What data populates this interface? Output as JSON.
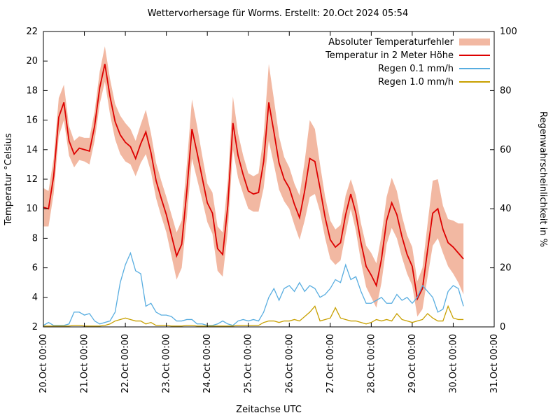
{
  "chart_data": {
    "type": "line",
    "title": "Wettervorhersage für Worms. Erstellt: 20.Oct 2024 05:54",
    "xlabel": "Zeitachse UTC",
    "ylabel_left": "Temperatur °Celsius",
    "ylabel_right": "Regenwahrscheinlichkeit in %",
    "background": "#ffffff",
    "axis_color": "#000000",
    "xlim_hours": [
      0,
      264
    ],
    "ylim_left": [
      2,
      22
    ],
    "ylim_right": [
      0,
      100
    ],
    "y_ticks_left": [
      2,
      4,
      6,
      8,
      10,
      12,
      14,
      16,
      18,
      20,
      22
    ],
    "y_ticks_right": [
      0,
      20,
      40,
      60,
      80,
      100
    ],
    "x_ticks": {
      "hours": [
        0,
        24,
        48,
        72,
        96,
        120,
        144,
        168,
        192,
        216,
        240,
        264
      ],
      "labels": [
        "20.Oct 00:00",
        "21.Oct 00:00",
        "22.Oct 00:00",
        "23.Oct 00:00",
        "24.Oct 00:00",
        "25.Oct 00:00",
        "26.Oct 00:00",
        "27.Oct 00:00",
        "28.Oct 00:00",
        "29.Oct 00:00",
        "30.Oct 00:00",
        "31.Oct 00:00"
      ]
    },
    "legend": [
      {
        "label": "Absoluter Temperaturfehler",
        "type": "band",
        "color": "#f2b8a2"
      },
      {
        "label": "Temperatur in 2 Meter Höhe",
        "type": "line",
        "color": "#dd0000"
      },
      {
        "label": "Regen 0.1 mm/h",
        "type": "line",
        "color": "#58ade0"
      },
      {
        "label": "Regen 1.0 mm/h",
        "type": "line",
        "color": "#c8a000"
      }
    ],
    "hours": [
      0,
      3,
      6,
      9,
      12,
      15,
      18,
      21,
      24,
      27,
      30,
      33,
      36,
      39,
      42,
      45,
      48,
      51,
      54,
      57,
      60,
      63,
      66,
      69,
      72,
      75,
      78,
      81,
      84,
      87,
      90,
      93,
      96,
      99,
      102,
      105,
      108,
      111,
      114,
      117,
      120,
      123,
      126,
      129,
      132,
      135,
      138,
      141,
      144,
      147,
      150,
      153,
      156,
      159,
      162,
      165,
      168,
      171,
      174,
      177,
      180,
      183,
      186,
      189,
      192,
      195,
      198,
      201,
      204,
      207,
      210,
      213,
      216,
      219,
      222,
      225,
      228,
      231,
      234,
      237,
      240,
      243,
      246
    ],
    "temperature_c": [
      10.1,
      10.0,
      12.2,
      16.2,
      17.2,
      14.6,
      13.7,
      14.1,
      14.0,
      13.9,
      15.6,
      18.2,
      19.8,
      17.6,
      15.9,
      15.0,
      14.5,
      14.2,
      13.4,
      14.4,
      15.2,
      13.8,
      11.9,
      10.7,
      9.6,
      8.2,
      6.8,
      7.6,
      11.2,
      15.4,
      13.8,
      12.1,
      10.4,
      9.7,
      7.3,
      6.9,
      10.2,
      15.8,
      13.6,
      12.3,
      11.2,
      11.0,
      11.1,
      13.2,
      17.2,
      15.2,
      13.1,
      12.0,
      11.4,
      10.3,
      9.4,
      11.2,
      13.4,
      13.2,
      11.4,
      9.4,
      7.9,
      7.4,
      7.7,
      9.6,
      11.0,
      9.7,
      7.7,
      6.1,
      5.5,
      4.8,
      6.6,
      9.2,
      10.4,
      9.6,
      8.1,
      6.9,
      6.1,
      3.9,
      4.6,
      7.2,
      9.7,
      10.0,
      8.6,
      7.7,
      7.4,
      7.0,
      6.6
    ],
    "temperature_error_c": [
      1.3,
      1.2,
      1.2,
      1.3,
      1.2,
      1.0,
      0.9,
      0.8,
      0.8,
      0.9,
      1.0,
      1.1,
      1.2,
      1.2,
      1.2,
      1.3,
      1.3,
      1.2,
      1.2,
      1.3,
      1.5,
      1.3,
      1.2,
      1.2,
      1.2,
      1.4,
      1.6,
      1.6,
      1.8,
      2.0,
      1.8,
      1.5,
      1.3,
      1.4,
      1.5,
      1.5,
      1.7,
      1.8,
      1.5,
      1.3,
      1.2,
      1.2,
      1.3,
      1.8,
      2.6,
      2.2,
      1.8,
      1.5,
      1.4,
      1.4,
      1.5,
      2.0,
      2.6,
      2.2,
      1.6,
      1.4,
      1.3,
      1.2,
      1.2,
      1.3,
      1.0,
      1.2,
      1.3,
      1.4,
      1.5,
      1.5,
      1.6,
      1.6,
      1.7,
      1.6,
      1.4,
      1.3,
      1.3,
      1.2,
      1.4,
      1.8,
      2.2,
      2.0,
      1.6,
      1.6,
      1.8,
      2.0,
      2.4
    ],
    "rain_01mm_pct": [
      0.5,
      1.5,
      0.5,
      0.5,
      0.5,
      1.0,
      5.0,
      5.0,
      4.0,
      4.5,
      2.0,
      1.0,
      1.5,
      2.0,
      5.0,
      15.0,
      21.0,
      25.0,
      19.0,
      18.0,
      7.0,
      8.0,
      5.0,
      4.0,
      4.0,
      3.5,
      2.0,
      2.0,
      2.5,
      2.5,
      1.0,
      1.0,
      0.5,
      0.5,
      1.0,
      2.0,
      1.0,
      0.5,
      2.0,
      2.5,
      2.0,
      2.5,
      2.0,
      5.0,
      10.0,
      13.0,
      9.0,
      13.0,
      14.0,
      12.0,
      15.0,
      12.0,
      14.0,
      13.0,
      10.0,
      11.0,
      13.0,
      16.0,
      15.0,
      21.0,
      16.0,
      17.0,
      12.0,
      8.0,
      8.0,
      9.0,
      10.0,
      8.0,
      8.0,
      11.0,
      9.0,
      10.0,
      8.0,
      10.0,
      14.0,
      12.0,
      10.0,
      5.0,
      6.0,
      12.0,
      14.0,
      13.0,
      7.0
    ],
    "rain_10mm_pct": [
      0.3,
      0.3,
      0.3,
      0.3,
      0.3,
      0.3,
      0.5,
      0.5,
      0.3,
      0.3,
      0.3,
      0.3,
      0.5,
      1.0,
      2.0,
      2.5,
      3.0,
      2.5,
      2.0,
      2.0,
      1.0,
      1.5,
      0.5,
      0.5,
      0.5,
      0.3,
      0.3,
      0.3,
      0.5,
      0.5,
      0.3,
      0.3,
      0.3,
      0.3,
      0.3,
      0.3,
      0.3,
      0.3,
      0.5,
      0.5,
      0.5,
      0.5,
      0.5,
      1.5,
      2.0,
      2.0,
      1.5,
      2.0,
      2.0,
      2.5,
      2.0,
      3.5,
      5.0,
      7.0,
      2.0,
      2.5,
      3.0,
      6.5,
      3.0,
      2.5,
      2.0,
      2.0,
      1.5,
      1.0,
      1.5,
      2.5,
      2.0,
      2.5,
      2.0,
      4.5,
      2.5,
      2.0,
      1.5,
      2.0,
      2.5,
      4.5,
      3.0,
      2.0,
      2.0,
      7.0,
      3.0,
      2.5,
      2.5
    ]
  }
}
